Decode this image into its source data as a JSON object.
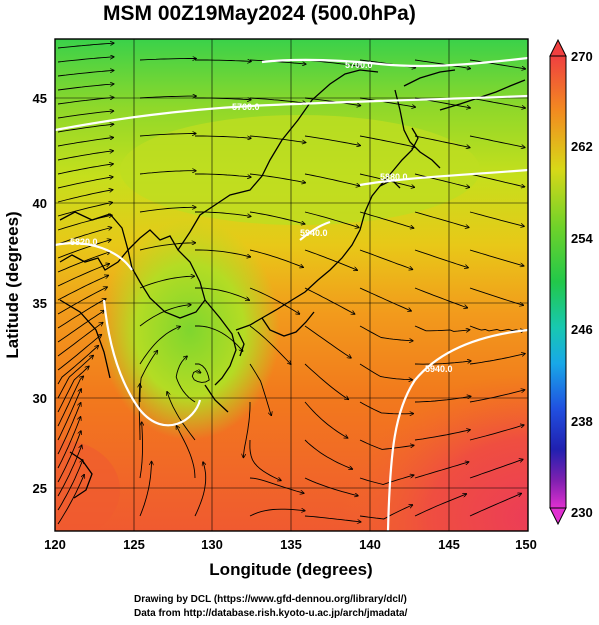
{
  "title": "MSM 00Z19May2024 (500.0hPa)",
  "x_axis": {
    "label": "Longitude (degrees)",
    "range": [
      120,
      150
    ],
    "ticks": [
      "120",
      "125",
      "130",
      "135",
      "140",
      "145",
      "150"
    ]
  },
  "y_axis": {
    "label": "Latitude  (degrees)",
    "range": [
      22.5,
      47.5
    ],
    "ticks": [
      "25",
      "30",
      "35",
      "40",
      "45"
    ]
  },
  "colorbar": {
    "range": [
      230,
      270
    ],
    "ticks": [
      "270",
      "262",
      "254",
      "246",
      "238",
      "230"
    ]
  },
  "contour_labels": [
    "5700.0",
    "5760.0",
    "5820.0",
    "5880.0",
    "5940.0",
    "5940.0"
  ],
  "credits": {
    "line1": "Drawing by DCL (https://www.gfd-dennou.org/library/dcl/)",
    "line2": "Data from http://database.rish.kyoto-u.ac.jp/arch/jmadata/"
  },
  "colors": {
    "temp_cold": "#22c84a",
    "temp_mid": "#c8e01e",
    "temp_warm": "#f07818",
    "temp_hot": "#ee4040",
    "contour": "#ffffff",
    "coast": "#000000"
  }
}
